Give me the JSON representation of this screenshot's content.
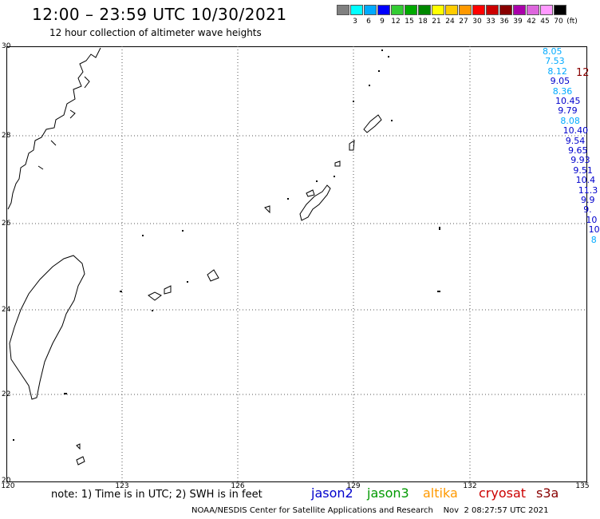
{
  "header": {
    "title": "12:00 – 23:59 UTC 10/30/2021",
    "subtitle": "12 hour collection of altimeter wave heights"
  },
  "colorbar": {
    "colors": [
      "#808080",
      "#00ffff",
      "#00aaff",
      "#0000ff",
      "#33cc33",
      "#00aa00",
      "#008800",
      "#ffff00",
      "#ffcc00",
      "#ff9900",
      "#ff0000",
      "#cc0000",
      "#880000",
      "#aa00aa",
      "#dd66dd",
      "#ff99ff",
      "#000000"
    ],
    "labels": [
      "3",
      "6",
      "9",
      "12",
      "15",
      "18",
      "21",
      "24",
      "27",
      "30",
      "33",
      "36",
      "39",
      "42",
      "45",
      "70",
      "(ft)"
    ]
  },
  "axes": {
    "lat_labels": [
      "30",
      "28",
      "26",
      "24",
      "22",
      "20"
    ],
    "lon_labels": [
      "120",
      "123",
      "126",
      "129",
      "132",
      "135"
    ]
  },
  "wave_heights": [
    {
      "text": "8.05",
      "color": "#00aaff"
    },
    {
      "text": "7.53",
      "color": "#00aaff"
    },
    {
      "text": "8.12",
      "color": "#00aaff"
    },
    {
      "text": "9.05",
      "color": "#0000cc"
    },
    {
      "text": "8.36",
      "color": "#00aaff"
    },
    {
      "text": "10.45",
      "color": "#0000cc"
    },
    {
      "text": "9.79",
      "color": "#0000cc"
    },
    {
      "text": "8.08",
      "color": "#00aaff"
    },
    {
      "text": "10.40",
      "color": "#0000cc"
    },
    {
      "text": "9.54",
      "color": "#0000cc"
    },
    {
      "text": "9.65",
      "color": "#0000cc"
    },
    {
      "text": "9.93",
      "color": "#0000cc"
    },
    {
      "text": "9.51",
      "color": "#0000cc"
    },
    {
      "text": "10.4",
      "color": "#0000cc"
    },
    {
      "text": "11.3",
      "color": "#0000cc"
    },
    {
      "text": "9.9",
      "color": "#0000cc"
    },
    {
      "text": "9.",
      "color": "#0000cc"
    },
    {
      "text": "10",
      "color": "#0000cc"
    },
    {
      "text": "10",
      "color": "#0000cc"
    },
    {
      "text": "8",
      "color": "#00aaff"
    }
  ],
  "extra_value": {
    "text": "12",
    "color": "#880000"
  },
  "footer": {
    "note": "note:  1) Time is in UTC;  2) SWH is in feet",
    "legend": [
      {
        "text": "jason2",
        "color": "#0000cc"
      },
      {
        "text": "jason3",
        "color": "#009900"
      },
      {
        "text": "altika",
        "color": "#ff9900"
      },
      {
        "text": "cryosat",
        "color": "#cc0000"
      },
      {
        "text": "s3a",
        "color": "#880000"
      }
    ],
    "credit": "NOAA/NESDIS Center for Satellite Applications and Research    Nov  2 08:27:57 UTC 2021"
  }
}
